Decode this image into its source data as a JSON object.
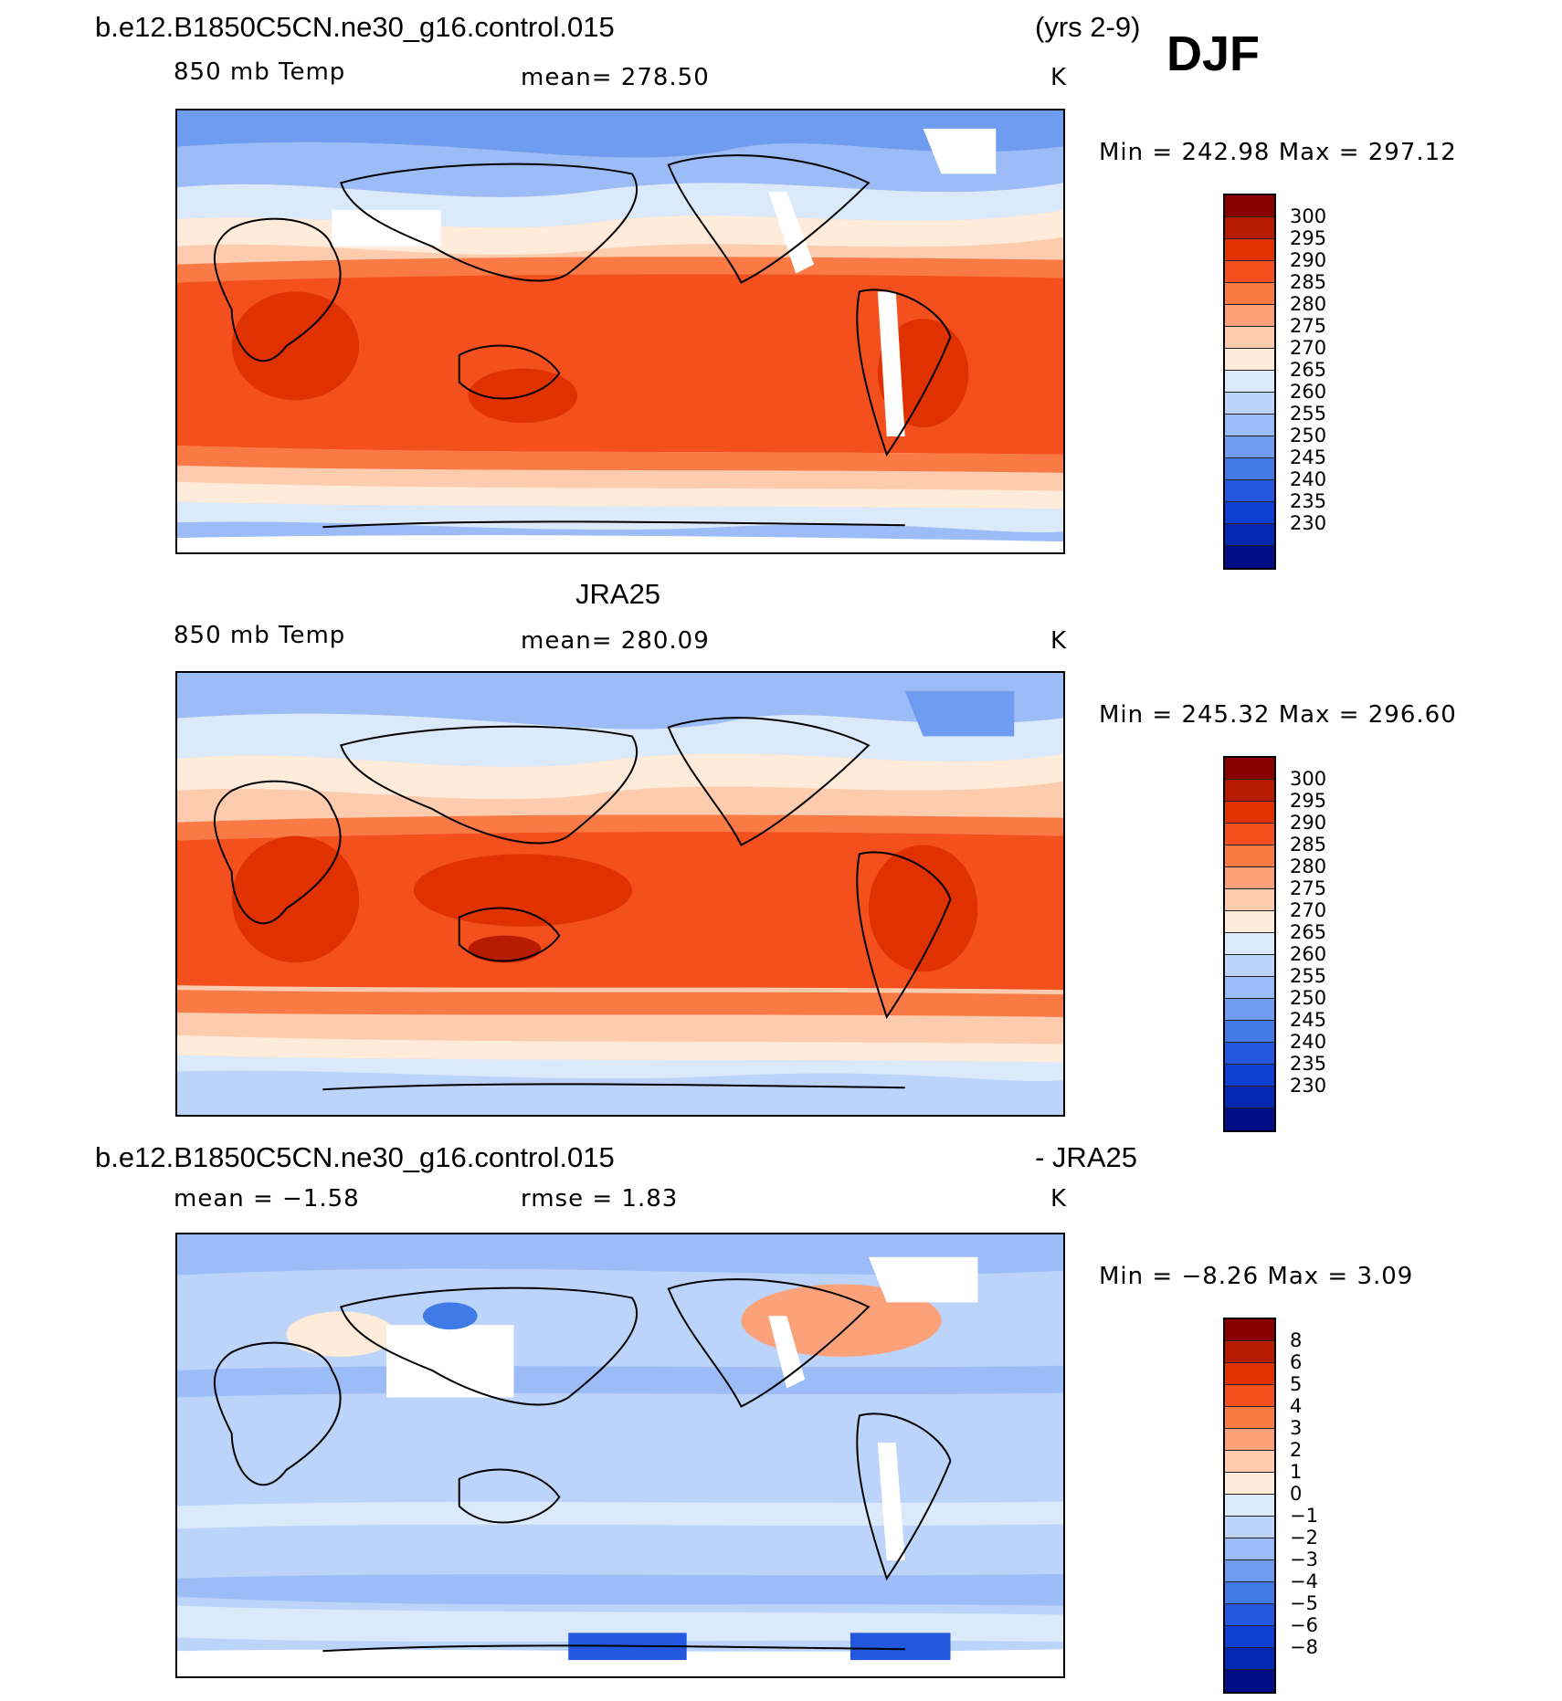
{
  "header": {
    "case_title": "b.e12.B1850C5CN.ne30_g16.control.015",
    "years": "(yrs 2-9)",
    "season": "DJF"
  },
  "panels": [
    {
      "title": "",
      "left_label": "850 mb Temp",
      "center_label": "mean=  278.50",
      "units": "K",
      "minmax": "Min  =  242.98  Max  =  297.12",
      "colorbar": {
        "colors": [
          "#8a0000",
          "#b81c00",
          "#e03200",
          "#f4501e",
          "#fa7a46",
          "#fca27b",
          "#fdcbae",
          "#feebda",
          "#dbeafb",
          "#bcd4f9",
          "#9bbcf6",
          "#6e9cf0",
          "#3f7ae6",
          "#2158df",
          "#0d3fd2",
          "#0428b2",
          "#000d84"
        ],
        "ticks": [
          "300",
          "295",
          "290",
          "285",
          "280",
          "275",
          "270",
          "265",
          "260",
          "255",
          "250",
          "245",
          "240",
          "235",
          "230"
        ]
      }
    },
    {
      "title": "JRA25",
      "left_label": "850 mb Temp",
      "center_label": "mean=  280.09",
      "units": "K",
      "minmax": "Min  =  245.32  Max  =  296.60",
      "colorbar": {
        "colors": [
          "#8a0000",
          "#b81c00",
          "#e03200",
          "#f4501e",
          "#fa7a46",
          "#fca27b",
          "#fdcbae",
          "#feebda",
          "#dbeafb",
          "#bcd4f9",
          "#9bbcf6",
          "#6e9cf0",
          "#3f7ae6",
          "#2158df",
          "#0d3fd2",
          "#0428b2",
          "#000d84"
        ],
        "ticks": [
          "300",
          "295",
          "290",
          "285",
          "280",
          "275",
          "270",
          "265",
          "260",
          "255",
          "250",
          "245",
          "240",
          "235",
          "230"
        ]
      }
    },
    {
      "title": "b.e12.B1850C5CN.ne30_g16.control.015",
      "title_right": "- JRA25",
      "left_label": "mean =    −1.58",
      "center_label": "rmse =     1.83",
      "units": "K",
      "minmax": "Min  =    −8.26  Max  =      3.09",
      "colorbar": {
        "colors": [
          "#8a0000",
          "#b81c00",
          "#e03200",
          "#f4501e",
          "#fa7a46",
          "#fca27b",
          "#fdcbae",
          "#feebda",
          "#dbeafb",
          "#bcd4f9",
          "#9bbcf6",
          "#6e9cf0",
          "#3f7ae6",
          "#2158df",
          "#0d3fd2",
          "#0428b2",
          "#000d84"
        ],
        "ticks": [
          "8",
          "6",
          "5",
          "4",
          "3",
          "2",
          "1",
          "0",
          "−1",
          "−2",
          "−3",
          "−4",
          "−5",
          "−6",
          "−8"
        ]
      }
    }
  ]
}
